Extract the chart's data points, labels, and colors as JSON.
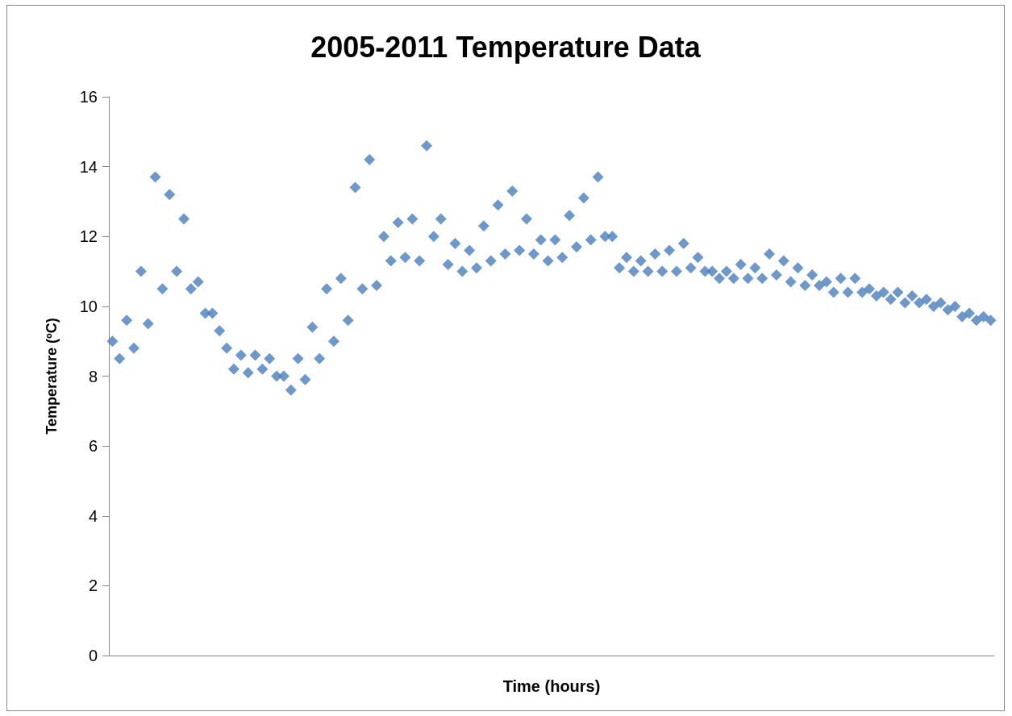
{
  "chart_data": {
    "type": "scatter",
    "title": "2005-2011 Temperature Data",
    "xlabel": "Time (hours)",
    "ylabel": "Temperature (ºC)",
    "categories": [
      null,
      null,
      null,
      null,
      null,
      null,
      null,
      null,
      null,
      null,
      null,
      null,
      null,
      null,
      null,
      null,
      null,
      null,
      null,
      null,
      null,
      null,
      null,
      null,
      null,
      null,
      null,
      null,
      null,
      null,
      null,
      null,
      null,
      null,
      null,
      null,
      null,
      null,
      null,
      null,
      null,
      null,
      null,
      null,
      null,
      null,
      null,
      null,
      null,
      null,
      null,
      null,
      null,
      null,
      null,
      null,
      null,
      null,
      null,
      null,
      null,
      null,
      null,
      null,
      null,
      null,
      null,
      null,
      null,
      null,
      null,
      null,
      null,
      null,
      null,
      null,
      null,
      null,
      null,
      null,
      null,
      null,
      null,
      null,
      null,
      null,
      null,
      null,
      null,
      null,
      null,
      null,
      null,
      null,
      null,
      null,
      null,
      null,
      null,
      null,
      null,
      null,
      null,
      null,
      null,
      null,
      null,
      null,
      null,
      null,
      null,
      null,
      null,
      null,
      null,
      null,
      null,
      null,
      null,
      null,
      null,
      null,
      null,
      null
    ],
    "series": [
      {
        "color": "#4a7ebb",
        "values": [
          9.0,
          8.5,
          9.6,
          8.8,
          11.0,
          9.5,
          13.7,
          10.5,
          13.2,
          11.0,
          12.5,
          10.5,
          10.7,
          9.8,
          9.8,
          9.3,
          8.8,
          8.2,
          8.6,
          8.1,
          8.6,
          8.2,
          8.5,
          8.0,
          8.0,
          7.6,
          8.5,
          7.9,
          9.4,
          8.5,
          10.5,
          9.0,
          10.8,
          9.6,
          13.4,
          10.5,
          14.2,
          10.6,
          12.0,
          11.3,
          12.4,
          11.4,
          12.5,
          11.3,
          14.6,
          12.0,
          12.5,
          11.2,
          11.8,
          11.0,
          11.6,
          11.1,
          12.3,
          11.3,
          12.9,
          11.5,
          13.3,
          11.6,
          12.5,
          11.5,
          11.9,
          11.3,
          11.9,
          11.4,
          12.6,
          11.7,
          13.1,
          11.9,
          13.7,
          12.0,
          12.0,
          11.1,
          11.4,
          11.0,
          11.3,
          11.0,
          11.5,
          11.0,
          11.6,
          11.0,
          11.8,
          11.1,
          11.4,
          11.0,
          11.0,
          10.8,
          11.0,
          10.8,
          11.2,
          10.8,
          11.1,
          10.8,
          11.5,
          10.9,
          11.3,
          10.7,
          11.1,
          10.6,
          10.9,
          10.6,
          10.7,
          10.4,
          10.8,
          10.4,
          10.8,
          10.4,
          10.5,
          10.3,
          10.4,
          10.2,
          10.4,
          10.1,
          10.3,
          10.1,
          10.2,
          10.0,
          10.1,
          9.9,
          10.0,
          9.7,
          9.8,
          9.6,
          9.7,
          9.6
        ]
      }
    ],
    "ylim": [
      0,
      16
    ],
    "yticks": [
      0,
      2,
      4,
      6,
      8,
      10,
      12,
      14,
      16
    ],
    "grid": false,
    "marker": "diamond",
    "tick_labels": "y"
  }
}
